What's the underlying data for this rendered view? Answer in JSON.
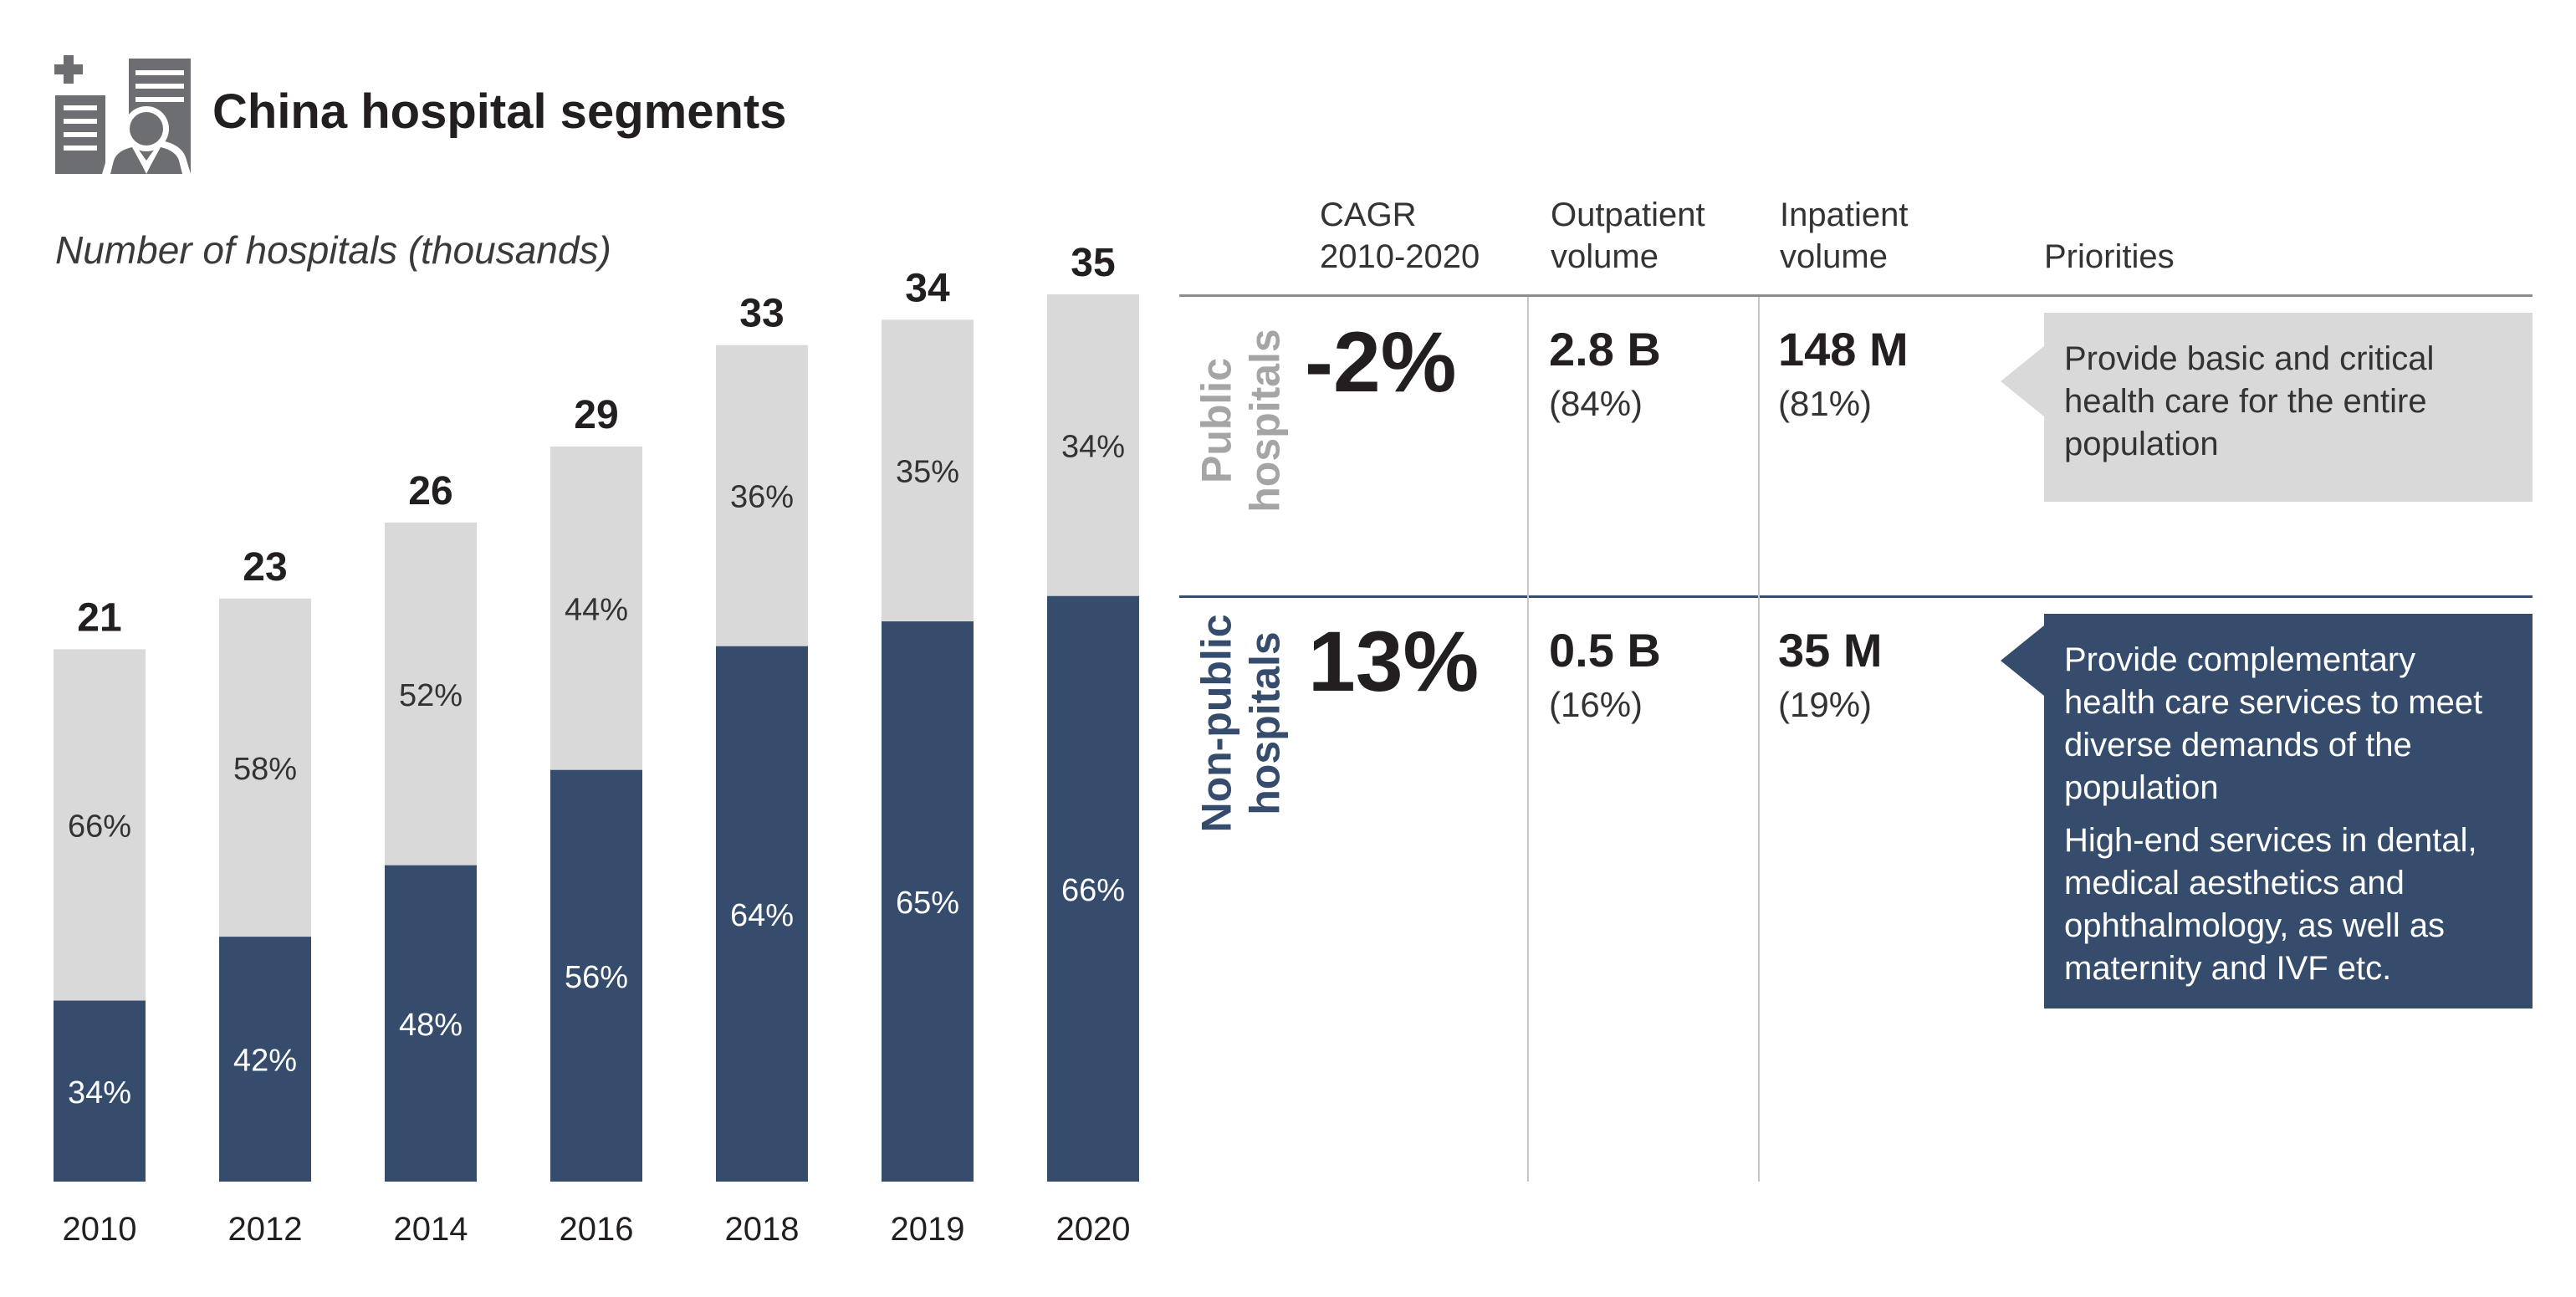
{
  "header": {
    "title": "China hospital segments",
    "icon": "hospital-doctor-icon"
  },
  "chart_data": {
    "type": "bar",
    "stacked": true,
    "title": "China hospital segments",
    "subtitle": "Number of hospitals (thousands)",
    "categories": [
      "2010",
      "2012",
      "2014",
      "2016",
      "2018",
      "2019",
      "2020"
    ],
    "totals": [
      21,
      23,
      26,
      29,
      33,
      34,
      35
    ],
    "series": [
      {
        "name": "Non-public hospitals",
        "share_labels": [
          "34%",
          "42%",
          "48%",
          "56%",
          "64%",
          "65%",
          "66%"
        ],
        "shares": [
          34,
          42,
          48,
          56,
          64,
          65,
          66
        ],
        "color": "#354c6c"
      },
      {
        "name": "Public hospitals",
        "share_labels": [
          "66%",
          "58%",
          "52%",
          "44%",
          "36%",
          "35%",
          "34%"
        ],
        "shares": [
          66,
          58,
          52,
          44,
          36,
          35,
          34
        ],
        "color": "#d9d9d9"
      }
    ],
    "ylim": [
      0,
      35
    ],
    "grid": false
  },
  "table": {
    "headers": {
      "cagr": [
        "CAGR",
        "2010-2020"
      ],
      "outpatient": [
        "Outpatient",
        "volume"
      ],
      "inpatient": [
        "Inpatient",
        "volume"
      ],
      "priorities": "Priorities"
    },
    "rows": [
      {
        "label_lines": [
          "Public",
          "hospitals"
        ],
        "color": "#a5a5a5",
        "cagr": "-2%",
        "outpatient": "2.8 B",
        "outpatient_share": "(84%)",
        "inpatient": "148 M",
        "inpatient_share": "(81%)",
        "priorities": [
          "Provide basic and critical health care for the entire population"
        ]
      },
      {
        "label_lines": [
          "Non-public",
          "hospitals"
        ],
        "color": "#354c6c",
        "cagr": "13%",
        "outpatient": "0.5 B",
        "outpatient_share": "(16%)",
        "inpatient": "35 M",
        "inpatient_share": "(19%)",
        "priorities": [
          "Provide complementary health care services to meet diverse demands of the population",
          "High-end services in dental, medical aesthetics and ophthalmology, as well as maternity and IVF etc."
        ]
      }
    ]
  }
}
